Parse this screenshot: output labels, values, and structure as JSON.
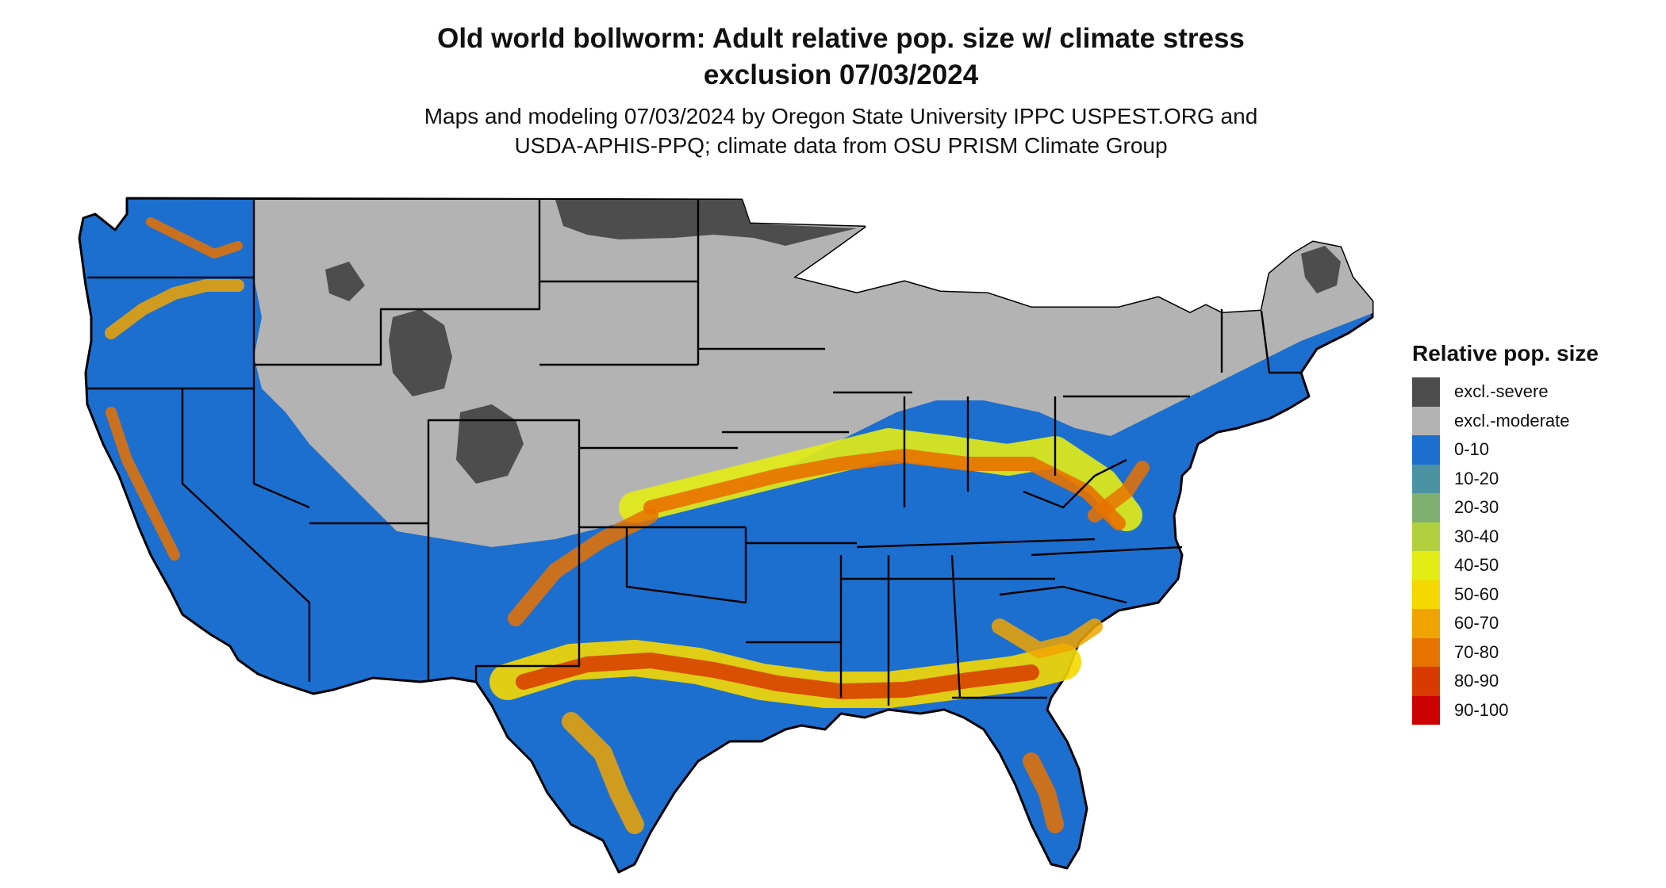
{
  "title_line1": "Old world bollworm: Adult relative pop. size w/ climate stress",
  "title_line2": "exclusion 07/03/2024",
  "subtitle_line1": "Maps and modeling 07/03/2024 by Oregon State University IPPC USPEST.ORG and",
  "subtitle_line2": "USDA-APHIS-PPQ; climate data from OSU PRISM Climate Group",
  "legend": {
    "title": "Relative pop. size",
    "items": [
      {
        "label": "excl.-severe",
        "color": "#4d4d4d"
      },
      {
        "label": "excl.-moderate",
        "color": "#b3b3b3"
      },
      {
        "label": "0-10",
        "color": "#1c6fcf"
      },
      {
        "label": "10-20",
        "color": "#4b93a3"
      },
      {
        "label": "20-30",
        "color": "#7fb06f"
      },
      {
        "label": "30-40",
        "color": "#b2cf3d"
      },
      {
        "label": "40-50",
        "color": "#e3ec14"
      },
      {
        "label": "50-60",
        "color": "#f5d800"
      },
      {
        "label": "60-70",
        "color": "#f0a400"
      },
      {
        "label": "70-80",
        "color": "#e87200"
      },
      {
        "label": "80-90",
        "color": "#d83a00"
      },
      {
        "label": "90-100",
        "color": "#cc0000"
      }
    ]
  }
}
